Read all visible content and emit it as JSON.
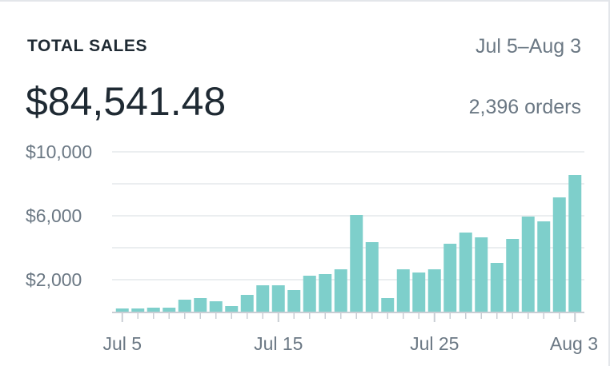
{
  "card": {
    "title": "TOTAL SALES",
    "date_range": "Jul 5–Aug 3",
    "total": "$84,541.48",
    "orders": "2,396 orders"
  },
  "colors": {
    "bar": "#7ecfcb",
    "grid": "#dfe3e7",
    "axis": "#c9ced4",
    "text": "#1f2a33",
    "muted": "#6b7884"
  },
  "chart_data": {
    "type": "bar",
    "title": "TOTAL SALES",
    "xlabel": "",
    "ylabel": "",
    "ylim": [
      0,
      10000
    ],
    "grid": true,
    "categories": [
      "Jul 5",
      "Jul 6",
      "Jul 7",
      "Jul 8",
      "Jul 9",
      "Jul 10",
      "Jul 11",
      "Jul 12",
      "Jul 13",
      "Jul 14",
      "Jul 15",
      "Jul 16",
      "Jul 17",
      "Jul 18",
      "Jul 19",
      "Jul 20",
      "Jul 21",
      "Jul 22",
      "Jul 23",
      "Jul 24",
      "Jul 25",
      "Jul 26",
      "Jul 27",
      "Jul 28",
      "Jul 29",
      "Jul 30",
      "Jul 31",
      "Aug 1",
      "Aug 2",
      "Aug 3"
    ],
    "values": [
      200,
      200,
      250,
      250,
      750,
      850,
      650,
      350,
      1050,
      1650,
      1650,
      1350,
      2250,
      2350,
      2650,
      6050,
      4350,
      850,
      2650,
      2450,
      2650,
      4250,
      4950,
      4650,
      3050,
      4550,
      5950,
      5650,
      7150,
      8550
    ],
    "y_ticks": [
      {
        "value": 2000,
        "label": "$2,000"
      },
      {
        "value": 6000,
        "label": "$6,000"
      },
      {
        "value": 10000,
        "label": "$10,000"
      }
    ],
    "x_ticks": [
      {
        "index": 0,
        "label": "Jul 5"
      },
      {
        "index": 10,
        "label": "Jul 15"
      },
      {
        "index": 20,
        "label": "Jul 25"
      },
      {
        "index": 29,
        "label": "Aug 3"
      }
    ]
  }
}
